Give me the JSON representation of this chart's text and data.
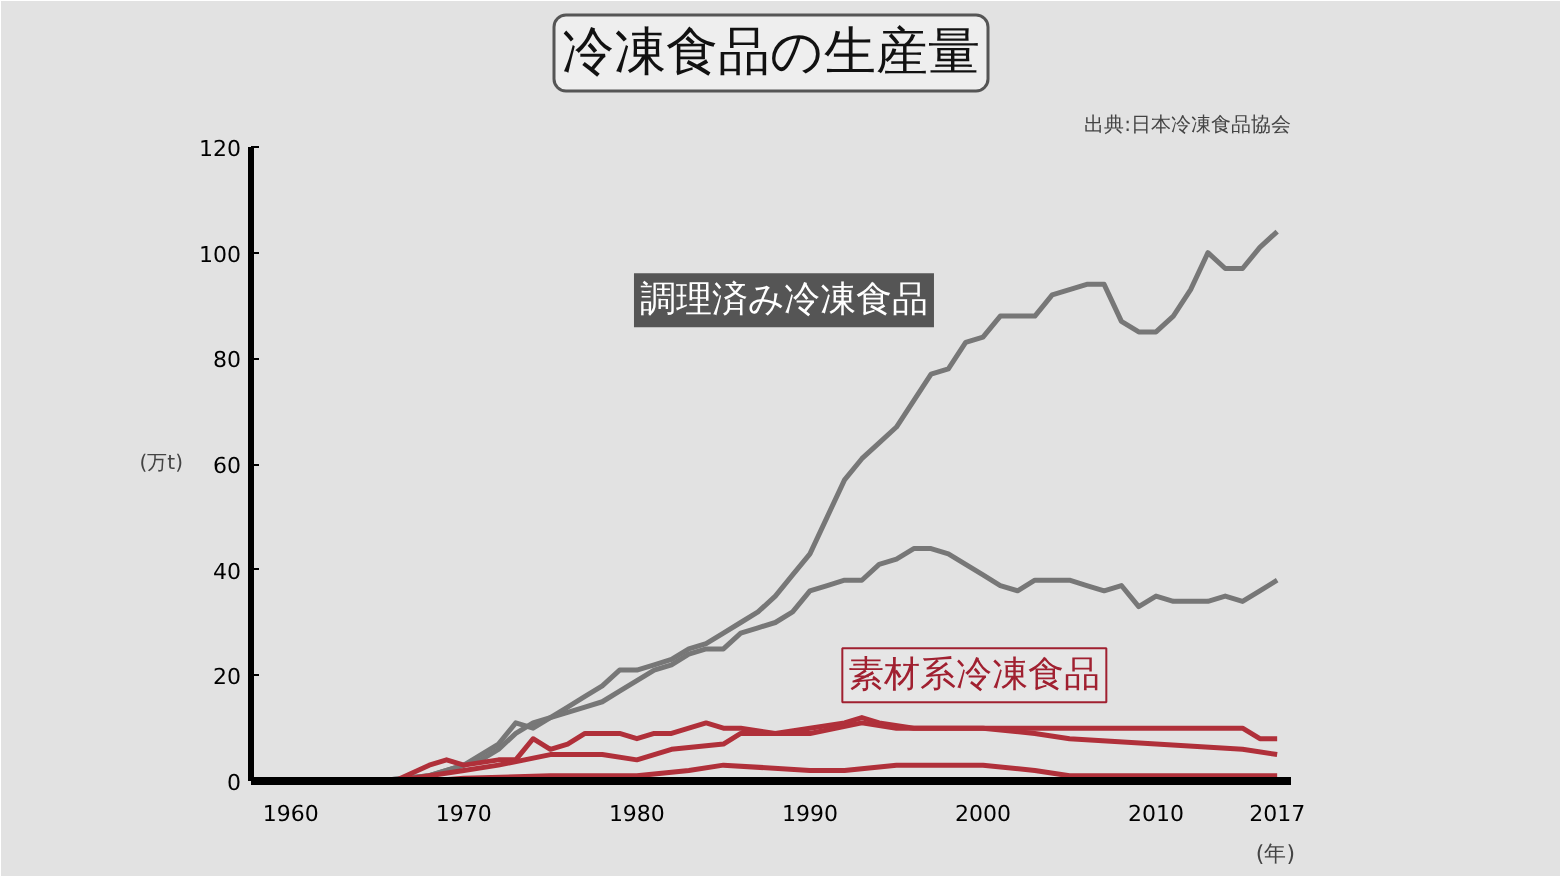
{
  "chart_data": {
    "type": "line",
    "title": "冷凍食品の生産量",
    "ylabel": "(万t)",
    "xlabel": "(年)",
    "annotations": [
      "調理済み冷凍食品",
      "素材系冷凍食品",
      "出典:日本冷凍食品協会"
    ],
    "xlim": [
      1957.7,
      2017.8
    ],
    "ylim": [
      0,
      120
    ],
    "xticks": [
      1960,
      1970,
      1980,
      1990,
      2000,
      2010,
      2017
    ],
    "yticks": [
      0,
      20,
      40,
      60,
      80,
      100,
      120
    ],
    "grid": false,
    "marker": "none",
    "line_style": "solid",
    "series": [
      {
        "color": "#777777",
        "x": [
          1958,
          1965,
          1968,
          1970,
          1972,
          1973,
          1974,
          1975,
          1976,
          1977,
          1978,
          1979,
          1980,
          1981,
          1982,
          1983,
          1984,
          1985,
          1986,
          1987,
          1988,
          1989,
          1990,
          1991,
          1992,
          1993,
          1994,
          1995,
          1996,
          1997,
          1998,
          1999,
          2000,
          2001,
          2002,
          2003,
          2004,
          2005,
          2006,
          2007,
          2008,
          2009,
          2010,
          2011,
          2012,
          2013,
          2014,
          2015,
          2016,
          2017
        ],
        "values": [
          0,
          0,
          1,
          3,
          7,
          11,
          10,
          12,
          14,
          16,
          18,
          21,
          21,
          22,
          23,
          25,
          26,
          28,
          30,
          32,
          35,
          39,
          43,
          50,
          57,
          61,
          64,
          67,
          72,
          77,
          78,
          83,
          84,
          88,
          88,
          88,
          92,
          93,
          94,
          94,
          87,
          85,
          85,
          88,
          93,
          100,
          97,
          97,
          101,
          104
        ]
      },
      {
        "color": "#777777",
        "x": [
          1958,
          1965,
          1968,
          1970,
          1971,
          1972,
          1973,
          1974,
          1975,
          1976,
          1977,
          1978,
          1979,
          1980,
          1981,
          1982,
          1983,
          1984,
          1985,
          1986,
          1987,
          1988,
          1989,
          1990,
          1991,
          1992,
          1993,
          1994,
          1995,
          1996,
          1997,
          1998,
          1999,
          2000,
          2001,
          2002,
          2003,
          2004,
          2005,
          2006,
          2007,
          2008,
          2009,
          2010,
          2011,
          2012,
          2013,
          2014,
          2015,
          2016,
          2017
        ],
        "values": [
          0,
          0,
          1,
          3,
          4,
          6,
          9,
          11,
          12,
          13,
          14,
          15,
          17,
          19,
          21,
          22,
          24,
          25,
          25,
          28,
          29,
          30,
          32,
          36,
          37,
          38,
          38,
          41,
          42,
          44,
          44,
          43,
          41,
          39,
          37,
          36,
          38,
          38,
          38,
          37,
          36,
          37,
          33,
          35,
          34,
          34,
          34,
          35,
          34,
          36,
          38
        ]
      },
      {
        "color": "#b0303a",
        "x": [
          1958,
          1966,
          1968,
          1969,
          1970,
          1972,
          1973,
          1974,
          1975,
          1976,
          1977,
          1978,
          1979,
          1980,
          1981,
          1982,
          1983,
          1984,
          1985,
          1986,
          1988,
          1990,
          1992,
          1993,
          1994,
          1996,
          1998,
          2000,
          2002,
          2005,
          2008,
          2010,
          2013,
          2015,
          2016,
          2017
        ],
        "values": [
          0,
          0,
          3,
          4,
          3,
          4,
          4,
          8,
          6,
          7,
          9,
          9,
          9,
          8,
          9,
          9,
          10,
          11,
          10,
          10,
          9,
          10,
          11,
          12,
          11,
          10,
          10,
          10,
          10,
          10,
          10,
          10,
          10,
          10,
          8,
          8
        ]
      },
      {
        "color": "#b0303a",
        "x": [
          1958,
          1966,
          1968,
          1970,
          1972,
          1975,
          1978,
          1980,
          1982,
          1985,
          1986,
          1990,
          1993,
          1995,
          2000,
          2003,
          2005,
          2010,
          2015,
          2017
        ],
        "values": [
          0,
          0,
          1,
          2,
          3,
          5,
          5,
          4,
          6,
          7,
          9,
          9,
          11,
          10,
          10,
          9,
          8,
          7,
          6,
          5
        ]
      },
      {
        "color": "#b0303a",
        "x": [
          1958,
          1968,
          1970,
          1975,
          1980,
          1983,
          1985,
          1990,
          1992,
          1995,
          2000,
          2003,
          2005,
          2010,
          2017
        ],
        "values": [
          0,
          0,
          0.5,
          1,
          1,
          2,
          3,
          2,
          2,
          3,
          3,
          2,
          1,
          1,
          1
        ]
      }
    ]
  }
}
